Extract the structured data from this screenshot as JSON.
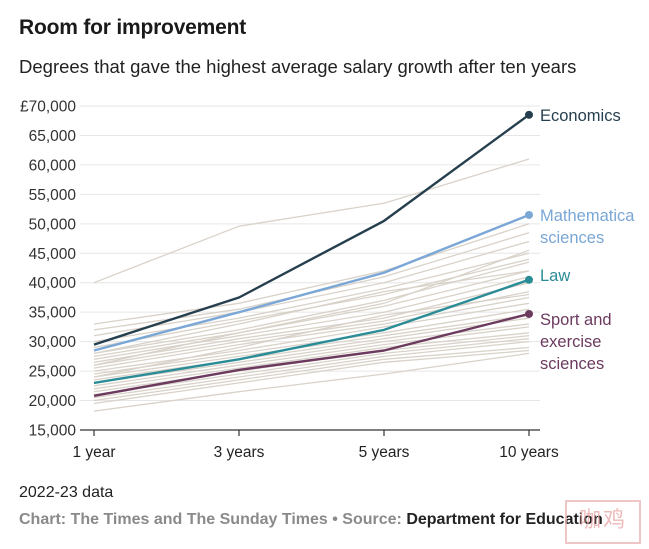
{
  "header": {
    "title": "Room for improvement",
    "subtitle": "Degrees that gave the highest average salary growth after ten years"
  },
  "footer": {
    "note": "2022-23 data",
    "credit_prefix": "Chart: The Times and The Sunday Times • Source: ",
    "source": "Department for Education",
    "stamp_text": "咖鸡"
  },
  "colors": {
    "background_lines": "#d9d2c9",
    "grid": "#e6e6e6",
    "axis": "#333333",
    "economics": "#263f4e",
    "mathematics": "#7aa7d6",
    "law": "#2a8c96",
    "sport": "#6b3a5e"
  },
  "chart_data": {
    "type": "line",
    "title": "Room for improvement",
    "subtitle": "Degrees that gave the highest average salary growth after ten years",
    "xlabel": "",
    "ylabel": "",
    "categories": [
      "1 year",
      "3 years",
      "5 years",
      "10 years"
    ],
    "ylim": [
      15000,
      70000
    ],
    "yticks": [
      15000,
      20000,
      25000,
      30000,
      35000,
      40000,
      45000,
      50000,
      55000,
      60000,
      65000,
      70000
    ],
    "ytick_labels": [
      "15,000",
      "20,000",
      "25,000",
      "30,000",
      "35,000",
      "40,000",
      "45,000",
      "50,000",
      "55,000",
      "60,000",
      "65,000",
      "£70,000"
    ],
    "grid": true,
    "highlighted_series": [
      {
        "name": "Economics",
        "label_lines": [
          "Economics"
        ],
        "color_key": "economics",
        "values": [
          29500,
          37500,
          50500,
          68500
        ]
      },
      {
        "name": "Mathematical sciences",
        "label_lines": [
          "Mathematica",
          "sciences"
        ],
        "color_key": "mathematics",
        "values": [
          28500,
          35000,
          41700,
          51500
        ]
      },
      {
        "name": "Law",
        "label_lines": [
          "Law"
        ],
        "color_key": "law",
        "values": [
          23000,
          27000,
          32000,
          40500
        ]
      },
      {
        "name": "Sport and exercise sciences",
        "label_lines": [
          "Sport and",
          "exercise",
          "sciences"
        ],
        "color_key": "sport",
        "values": [
          20800,
          25200,
          28500,
          34700
        ]
      }
    ],
    "background_series": [
      [
        40000,
        49600,
        53500,
        61000
      ],
      [
        33000,
        36500,
        42000,
        50000
      ],
      [
        32000,
        35500,
        41000,
        48500
      ],
      [
        31000,
        35000,
        40000,
        47000
      ],
      [
        30000,
        34000,
        39000,
        45000
      ],
      [
        29000,
        33500,
        38000,
        44000
      ],
      [
        28000,
        32000,
        37000,
        43500
      ],
      [
        27500,
        31500,
        36000,
        42000
      ],
      [
        27000,
        31000,
        35000,
        41000
      ],
      [
        26500,
        30500,
        34000,
        40000
      ],
      [
        26000,
        30000,
        33500,
        38500
      ],
      [
        25500,
        29500,
        33000,
        37500
      ],
      [
        25000,
        28500,
        32500,
        36500
      ],
      [
        24500,
        28000,
        31500,
        35500
      ],
      [
        24000,
        27500,
        31000,
        34500
      ],
      [
        23500,
        27000,
        30500,
        34000
      ],
      [
        23000,
        26500,
        30000,
        33000
      ],
      [
        22500,
        26000,
        29500,
        32500
      ],
      [
        22000,
        25500,
        29000,
        31500
      ],
      [
        21500,
        25000,
        28500,
        31000
      ],
      [
        21000,
        24500,
        28000,
        30500
      ],
      [
        20500,
        24000,
        27500,
        30000
      ],
      [
        20000,
        23500,
        27000,
        29000
      ],
      [
        19500,
        23000,
        26500,
        28500
      ],
      [
        18200,
        21500,
        24500,
        28000
      ],
      [
        28000,
        33000,
        38500,
        42000
      ],
      [
        26000,
        31500,
        36500,
        45500
      ],
      [
        24000,
        29000,
        34500,
        38000
      ]
    ]
  }
}
